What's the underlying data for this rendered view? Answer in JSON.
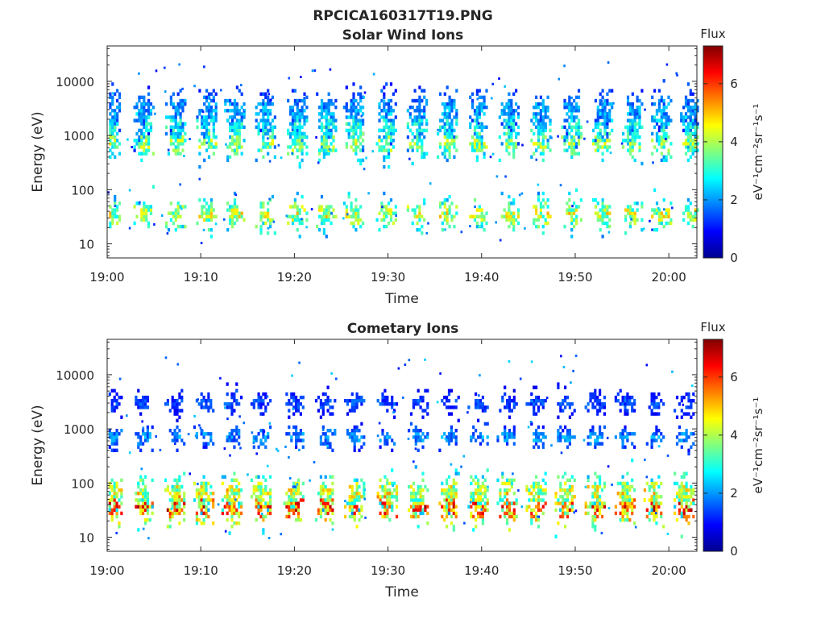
{
  "figure_title": "RPCICA160317T19.PNG",
  "chart_data": [
    {
      "type": "heatmap",
      "title": "Solar Wind Ions",
      "xlabel": "Time",
      "ylabel": "Energy (eV)",
      "x_ticks": [
        "19:00",
        "19:10",
        "19:20",
        "19:30",
        "19:40",
        "19:50",
        "20:00"
      ],
      "x_range": [
        "19:00",
        "20:03"
      ],
      "y_scale": "log",
      "y_ticks": [
        10,
        100,
        1000,
        10000
      ],
      "y_range": [
        5.5,
        45000
      ],
      "colorbar": {
        "title": "Flux",
        "unit": "eV⁻¹cm⁻²sr⁻¹s⁻¹",
        "ticks": [
          0,
          2,
          4,
          6
        ],
        "range": [
          0,
          7.3
        ],
        "colormap": "jet"
      },
      "bursts_minutes": [
        0.3,
        3.9,
        7.3,
        10.6,
        13.6,
        16.9,
        20.3,
        23.4,
        26.3,
        29.8,
        33.1,
        36.3,
        39.5,
        42.9,
        46.3,
        49.6,
        52.9,
        56.1,
        59.2,
        62.3
      ],
      "bands": [
        {
          "center_eV": 3000,
          "flux": 2.0,
          "spread": 0.55
        },
        {
          "center_eV": 1500,
          "flux": 2.7,
          "spread": 0.5
        },
        {
          "center_eV": 700,
          "flux": 3.7,
          "spread": 0.45
        },
        {
          "center_eV": 35,
          "flux": 4.0,
          "spread": 0.45
        }
      ]
    },
    {
      "type": "heatmap",
      "title": "Cometary Ions",
      "xlabel": "Time",
      "ylabel": "Energy (eV)",
      "x_ticks": [
        "19:00",
        "19:10",
        "19:20",
        "19:30",
        "19:40",
        "19:50",
        "20:00"
      ],
      "x_range": [
        "19:00",
        "20:03"
      ],
      "y_scale": "log",
      "y_ticks": [
        10,
        100,
        1000,
        10000
      ],
      "y_range": [
        5.5,
        45000
      ],
      "colorbar": {
        "title": "Flux",
        "unit": "eV⁻¹cm⁻²sr⁻¹s⁻¹",
        "ticks": [
          0,
          2,
          4,
          6
        ],
        "range": [
          0,
          7.3
        ],
        "colormap": "jet"
      },
      "bursts_minutes": [
        0.5,
        3.8,
        7.2,
        10.3,
        13.3,
        16.4,
        19.9,
        23.3,
        26.4,
        29.9,
        33.2,
        36.5,
        39.6,
        42.7,
        45.8,
        48.9,
        52.1,
        55.3,
        58.4,
        61.6
      ],
      "bands": [
        {
          "center_eV": 3000,
          "flux": 1.4,
          "spread": 0.35
        },
        {
          "center_eV": 700,
          "flux": 1.9,
          "spread": 0.3
        },
        {
          "center_eV": 35,
          "flux": 5.5,
          "spread": 0.5
        },
        {
          "center_eV": 70,
          "flux": 4.2,
          "spread": 0.45
        }
      ]
    }
  ]
}
